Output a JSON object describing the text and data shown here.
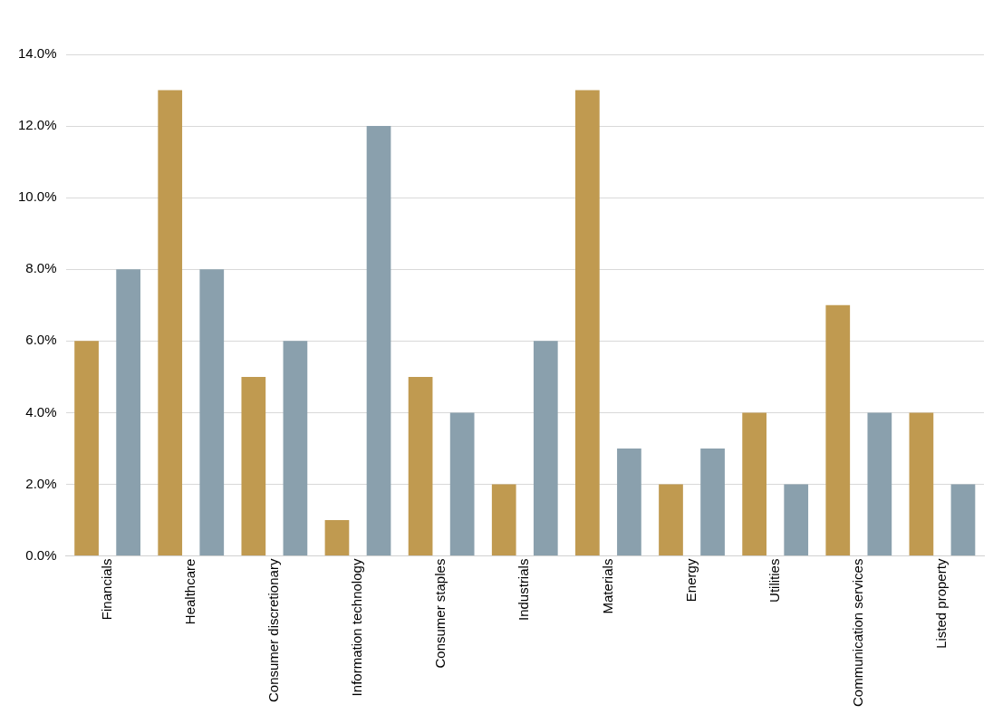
{
  "chart_data": {
    "type": "bar",
    "categories": [
      "Financials",
      "Healthcare",
      "Consumer discretionary",
      "Information technology",
      "Consumer staples",
      "Industrials",
      "Materials",
      "Energy",
      "Utilities",
      "Communication services",
      "Listed property"
    ],
    "series": [
      {
        "color": "#c09a50",
        "values": [
          6,
          13,
          5,
          1,
          5,
          2,
          13,
          2,
          4,
          7,
          4
        ]
      },
      {
        "color": "#8aa0ad",
        "values": [
          8,
          8,
          6,
          12,
          4,
          6,
          3,
          3,
          2,
          4,
          2
        ]
      }
    ],
    "ylim": [
      0,
      14
    ],
    "yticks": [
      {
        "value": 0,
        "label": "0.0%"
      },
      {
        "value": 2,
        "label": "2.0%"
      },
      {
        "value": 4,
        "label": "4.0%"
      },
      {
        "value": 6,
        "label": "6.0%"
      },
      {
        "value": 8,
        "label": "8.0%"
      },
      {
        "value": 10,
        "label": "10.0%"
      },
      {
        "value": 12,
        "label": "12.0%"
      },
      {
        "value": 14,
        "label": "14.0%"
      }
    ],
    "grid": "y"
  }
}
